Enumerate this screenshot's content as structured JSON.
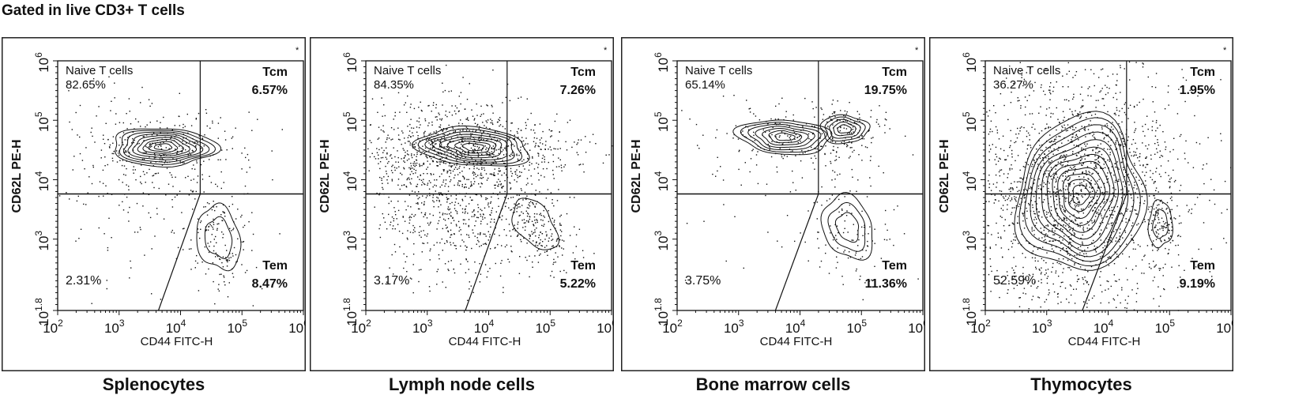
{
  "title": "Gated in live CD3+ T cells",
  "chart_data": [
    {
      "type": "scatter",
      "subtitle": "Splenocytes",
      "xlabel": "CD44 FITC-H",
      "ylabel": "CD62L PE-H",
      "xscale": "log",
      "yscale": "log",
      "xlim_log10": [
        2,
        6
      ],
      "ylim_log10": [
        1.8,
        6
      ],
      "xticks": [
        "2",
        "3",
        "4",
        "5",
        "6"
      ],
      "yticks": [
        "1.8",
        "3",
        "4",
        "5",
        "6"
      ],
      "gate": {
        "x_log10": 4.32,
        "y_log10": 3.76,
        "diag_bottom_x_log10": 3.64
      },
      "quadrants": {
        "naive_label": "Naive T cells",
        "naive": "82.65%",
        "tcm_label": "Tcm",
        "tcm": "6.57%",
        "tem_label": "Tem",
        "tem": "8.47%",
        "dn": "2.31%"
      },
      "populations": [
        {
          "cx": 3.72,
          "cy": 4.55,
          "sx": 0.62,
          "sy": 0.24,
          "rot": -3,
          "levels": 9,
          "n": 260
        },
        {
          "cx": 4.62,
          "cy": 3.02,
          "sx": 0.25,
          "sy": 0.42,
          "rot": 10,
          "levels": 2,
          "n": 160
        }
      ],
      "noise": 170,
      "marker": "*"
    },
    {
      "type": "scatter",
      "subtitle": "Lymph node cells",
      "xlabel": "CD44 FITC-H",
      "ylabel": "CD62L PE-H",
      "xscale": "log",
      "yscale": "log",
      "xlim_log10": [
        2,
        6
      ],
      "ylim_log10": [
        1.8,
        6
      ],
      "xticks": [
        "2",
        "3",
        "4",
        "5",
        "6"
      ],
      "yticks": [
        "1.8",
        "3",
        "4",
        "5",
        "6"
      ],
      "gate": {
        "x_log10": 4.3,
        "y_log10": 3.76,
        "diag_bottom_x_log10": 3.62
      },
      "quadrants": {
        "naive_label": "Naive T cells",
        "naive": "84.35%",
        "tcm_label": "Tcm",
        "tcm": "7.26%",
        "tem_label": "Tem",
        "tem": "5.22%",
        "dn": "3.17%"
      },
      "populations": [
        {
          "cx": 3.75,
          "cy": 4.55,
          "sx": 0.68,
          "sy": 0.24,
          "rot": -3,
          "levels": 8,
          "n": 600
        },
        {
          "cx": 4.75,
          "cy": 3.25,
          "sx": 0.22,
          "sy": 0.35,
          "rot": 35,
          "levels": 1,
          "n": 250
        }
      ],
      "noise": 900,
      "marker": "*"
    },
    {
      "type": "scatter",
      "subtitle": "Bone marrow cells",
      "xlabel": "CD44 FITC-H",
      "ylabel": "CD62L PE-H",
      "xscale": "log",
      "yscale": "log",
      "xlim_log10": [
        2,
        6
      ],
      "ylim_log10": [
        1.8,
        6
      ],
      "xticks": [
        "2",
        "3",
        "4",
        "5",
        "6"
      ],
      "yticks": [
        "1.8",
        "3",
        "4",
        "5",
        "6"
      ],
      "gate": {
        "x_log10": 4.3,
        "y_log10": 3.76,
        "diag_bottom_x_log10": 3.6
      },
      "quadrants": {
        "naive_label": "Naive T cells",
        "naive": "65.14%",
        "tcm_label": "Tcm",
        "tcm": "19.75%",
        "tem_label": "Tem",
        "tem": "11.36%",
        "dn": "3.75%"
      },
      "populations": [
        {
          "cx": 3.75,
          "cy": 4.72,
          "sx": 0.55,
          "sy": 0.22,
          "rot": -3,
          "levels": 7,
          "n": 200
        },
        {
          "cx": 4.72,
          "cy": 4.85,
          "sx": 0.3,
          "sy": 0.17,
          "rot": 0,
          "levels": 5,
          "n": 120
        },
        {
          "cx": 4.78,
          "cy": 3.2,
          "sx": 0.3,
          "sy": 0.4,
          "rot": 20,
          "levels": 3,
          "n": 120
        }
      ],
      "noise": 40,
      "marker": "*"
    },
    {
      "type": "scatter",
      "subtitle": "Thymocytes",
      "xlabel": "CD44 FITC-H",
      "ylabel": "CD62L PE-H",
      "xscale": "log",
      "yscale": "log",
      "xlim_log10": [
        2,
        6
      ],
      "ylim_log10": [
        1.8,
        6
      ],
      "xticks": [
        "2",
        "3",
        "4",
        "5",
        "6"
      ],
      "yticks": [
        "1.8",
        "3",
        "4",
        "5",
        "6"
      ],
      "gate": {
        "x_log10": 4.3,
        "y_log10": 3.76,
        "diag_bottom_x_log10": 3.58
      },
      "quadrants": {
        "naive_label": "Naive T cells",
        "naive": "36.27%",
        "tcm_label": "Tcm",
        "tcm": "1.95%",
        "tem_label": "Tem",
        "tem": "9.19%",
        "dn": "52.59%"
      },
      "populations": [
        {
          "cx": 3.55,
          "cy": 3.75,
          "sx": 0.78,
          "sy": 0.95,
          "rot": -15,
          "levels": 12,
          "n": 1500
        },
        {
          "cx": 4.85,
          "cy": 3.25,
          "sx": 0.14,
          "sy": 0.3,
          "rot": 0,
          "levels": 2,
          "n": 100
        }
      ],
      "noise": 500,
      "marker": "*"
    }
  ]
}
